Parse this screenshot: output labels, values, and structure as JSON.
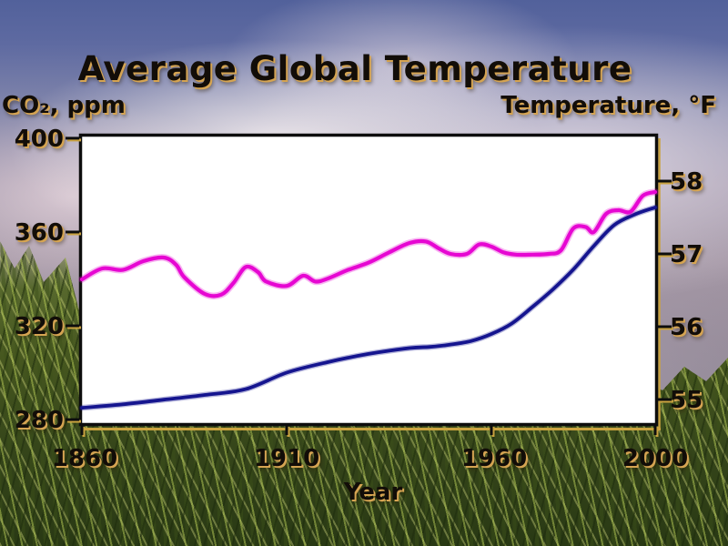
{
  "title": "Average Global Temperature",
  "axes": {
    "left": {
      "label": "CO₂, ppm",
      "ticks": [
        "400",
        "360",
        "320",
        "280"
      ]
    },
    "right": {
      "label": "Temperature, °F",
      "ticks": [
        "58",
        "57",
        "56",
        "55"
      ]
    },
    "bottom": {
      "label": "Year",
      "ticks": [
        "1860",
        "1910",
        "1960",
        "2000"
      ]
    }
  },
  "colors": {
    "co2_line": "#15158f",
    "temperature_line": "#e607d2",
    "plot_background": "#ffffff",
    "frame": "#0d0d0d",
    "gold_shadow": "#c9a23f"
  },
  "chart_data": {
    "type": "line",
    "title": "Average Global Temperature",
    "xlabel": "Year",
    "xlim": [
      1860,
      2000
    ],
    "x_ticks": [
      1860,
      1910,
      1960,
      2000
    ],
    "grid": false,
    "legend": "none",
    "left_axis": {
      "label": "CO₂, ppm",
      "ticks": [
        400,
        360,
        320,
        280
      ],
      "lim": [
        277.7,
        401.9
      ]
    },
    "right_axis": {
      "label": "Temperature, °F",
      "ticks": [
        58,
        57,
        56,
        55
      ],
      "lim": [
        54.65,
        58.65
      ]
    },
    "series": [
      {
        "name": "CO₂ concentration, ppm",
        "axis": "left",
        "color": "#15158f",
        "x": [
          1860,
          1870,
          1880,
          1890,
          1900,
          1910,
          1920,
          1930,
          1940,
          1945,
          1950,
          1955,
          1960,
          1965,
          1970,
          1975,
          1980,
          1985,
          1990,
          1995,
          2000
        ],
        "values": [
          285,
          286.5,
          288.5,
          290.5,
          293,
          300,
          304.5,
          308,
          310.5,
          311,
          312,
          313.5,
          316.5,
          321,
          328,
          335.5,
          344,
          354,
          363,
          367.5,
          370.5
        ]
      },
      {
        "name": "Temperature, °F",
        "axis": "right",
        "color": "#e607d2",
        "x": [
          1860,
          1865,
          1870,
          1875,
          1880,
          1883,
          1885,
          1890,
          1894,
          1897,
          1900,
          1903,
          1905,
          1910,
          1914,
          1917,
          1920,
          1925,
          1930,
          1935,
          1940,
          1944,
          1947,
          1950,
          1954,
          1957,
          1960,
          1963,
          1966,
          1970,
          1974,
          1977,
          1980,
          1983,
          1985,
          1988,
          1991,
          1994,
          1997,
          2000
        ],
        "values": [
          56.65,
          56.8,
          56.78,
          56.9,
          56.95,
          56.85,
          56.68,
          56.45,
          56.44,
          56.6,
          56.82,
          56.75,
          56.62,
          56.56,
          56.7,
          56.62,
          56.66,
          56.78,
          56.88,
          57.02,
          57.15,
          57.17,
          57.08,
          57.0,
          57.0,
          57.13,
          57.1,
          57.02,
          56.99,
          56.99,
          57.0,
          57.05,
          57.35,
          57.37,
          57.3,
          57.55,
          57.6,
          57.58,
          57.8,
          57.85
        ]
      }
    ]
  }
}
